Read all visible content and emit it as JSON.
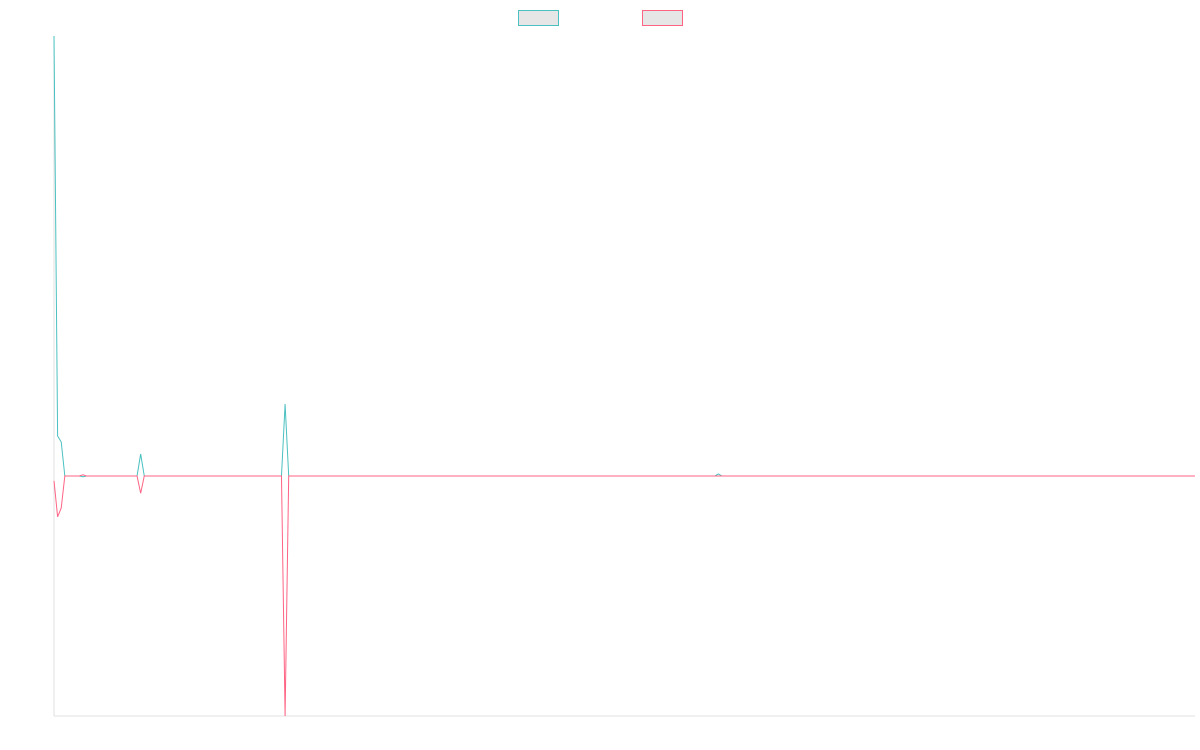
{
  "chart_data": {
    "type": "line",
    "x": [
      0,
      1,
      2,
      3,
      7,
      8,
      9,
      23,
      24,
      25,
      63,
      64,
      65,
      183,
      184,
      185,
      316
    ],
    "series": [
      {
        "color": "#4bc0c0",
        "values": [
          11,
          1,
          0.85,
          0,
          0,
          -0.02,
          0,
          0,
          0.55,
          0,
          0,
          1.8,
          0,
          0,
          0.05,
          0,
          0
        ]
      },
      {
        "color": "#ff6384",
        "values": [
          -0.12,
          -1.02,
          -0.8,
          0,
          0,
          0.03,
          0,
          0,
          -0.43,
          0,
          0,
          -6,
          0,
          0,
          0,
          0,
          0
        ]
      }
    ],
    "xlim": [
      0,
      316
    ],
    "ylim": [
      -6,
      11
    ],
    "legend": "top"
  }
}
